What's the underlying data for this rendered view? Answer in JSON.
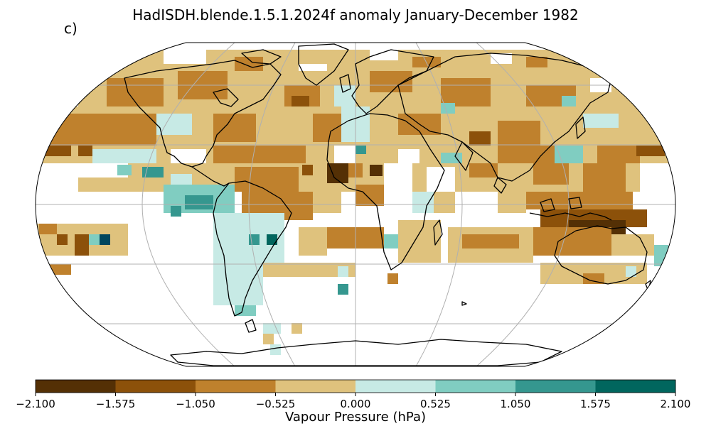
{
  "title": "HadISDH.blende.1.5.1.2024f anomaly January-December 1982",
  "panel_label": "c)",
  "colorbar": {
    "label": "Vapour Pressure (hPa)",
    "ticks": [
      "−2.100",
      "−1.575",
      "−1.050",
      "−0.525",
      "0.000",
      "0.525",
      "1.050",
      "1.575",
      "2.100"
    ],
    "colors": [
      "#543005",
      "#8c510a",
      "#bf812d",
      "#dfc27d",
      "#c7eae5",
      "#80cdc1",
      "#35978f",
      "#01665e"
    ]
  },
  "map": {
    "projection": "Robinson",
    "gridlines": true,
    "grid_color": "#b0b0b0",
    "coastline_color": "#000000"
  }
}
